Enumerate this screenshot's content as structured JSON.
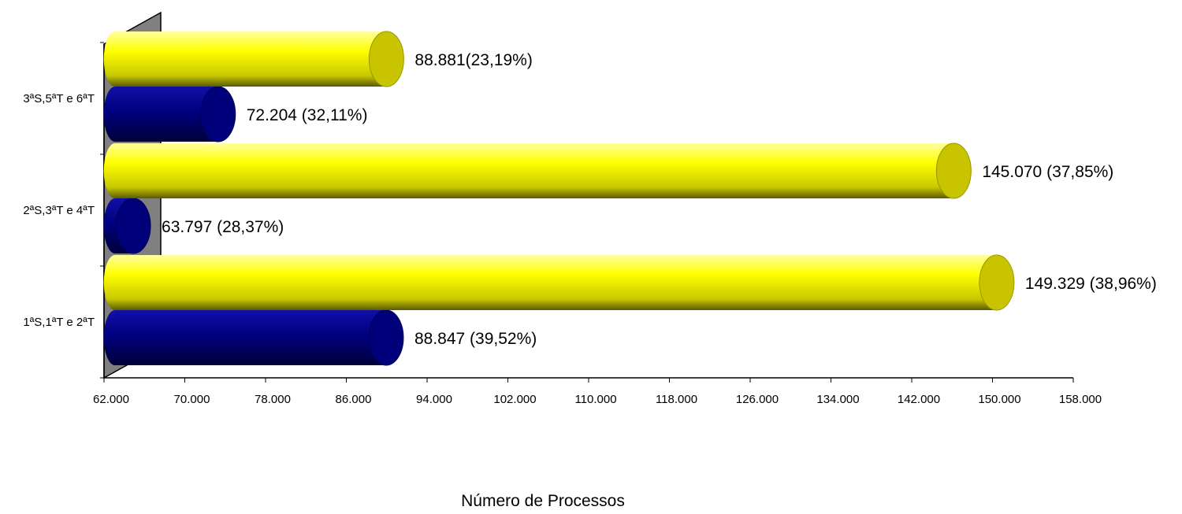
{
  "chart_data": {
    "type": "bar",
    "orientation": "horizontal",
    "three_d": true,
    "title": "",
    "xlabel": "Número de Processos",
    "ylabel": "",
    "categories": [
      "1ªS,1ªT e 2ªT",
      "2ªS,3ªT e 4ªT",
      "3ªS,5ªT e 6ªT"
    ],
    "series": [
      {
        "color": "#000080",
        "values": [
          88847,
          63797,
          72204
        ],
        "labels": [
          "88.847 (39,52%)",
          "63.797 (28,37%)",
          "72.204 (32,11%)"
        ]
      },
      {
        "color": "#FFFF00",
        "values": [
          149329,
          145070,
          88881
        ],
        "labels": [
          "149.329 (38,96%)",
          "145.070 (37,85%)",
          "88.881(23,19%)"
        ]
      }
    ],
    "xlim": [
      62000,
      158000
    ],
    "xticks": [
      {
        "value": 62000,
        "label": "62.000"
      },
      {
        "value": 70000,
        "label": "70.000"
      },
      {
        "value": 78000,
        "label": "78.000"
      },
      {
        "value": 86000,
        "label": "86.000"
      },
      {
        "value": 94000,
        "label": "94.000"
      },
      {
        "value": 102000,
        "label": "102.000"
      },
      {
        "value": 110000,
        "label": "110.000"
      },
      {
        "value": 118000,
        "label": "118.000"
      },
      {
        "value": 126000,
        "label": "126.000"
      },
      {
        "value": 134000,
        "label": "134.000"
      },
      {
        "value": 142000,
        "label": "142.000"
      },
      {
        "value": 150000,
        "label": "150.000"
      },
      {
        "value": 158000,
        "label": "158.000"
      }
    ],
    "grid": false,
    "legend": "none",
    "wall_color": "#808080"
  }
}
